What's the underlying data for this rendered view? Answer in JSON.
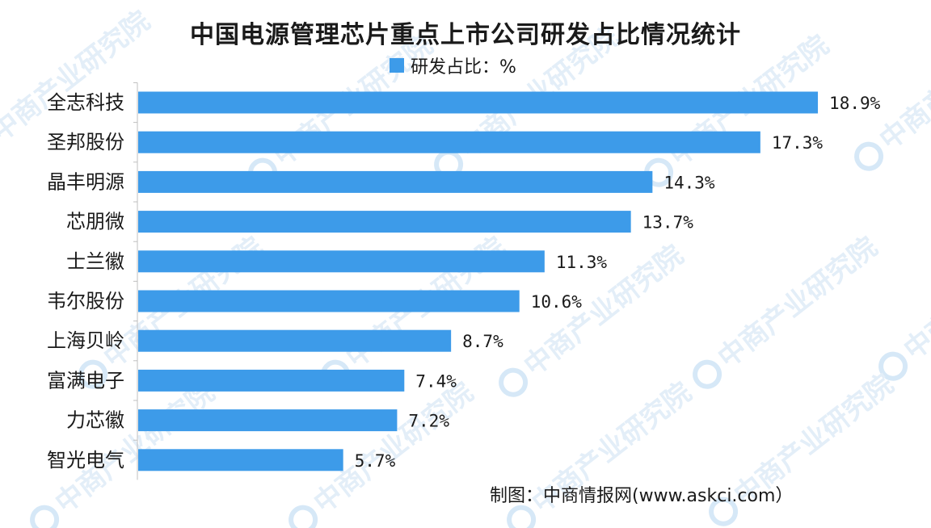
{
  "chart_data": {
    "type": "bar",
    "orientation": "horizontal",
    "title": "中国电源管理芯片重点上市公司研发占比情况统计",
    "legend": "研发占比：%",
    "categories": [
      "全志科技",
      "圣邦股份",
      "晶丰明源",
      "芯朋微",
      "士兰徽",
      "韦尔股份",
      "上海贝岭",
      "富满电子",
      "力芯徽",
      "智光电气"
    ],
    "values": [
      18.9,
      17.3,
      14.3,
      13.7,
      11.3,
      10.6,
      8.7,
      7.4,
      7.2,
      5.7
    ],
    "value_labels": [
      "18.9%",
      "17.3%",
      "14.3%",
      "13.7%",
      "11.3%",
      "10.6%",
      "8.7%",
      "7.4%",
      "7.2%",
      "5.7%"
    ],
    "xlim": [
      0,
      20
    ],
    "grid": false,
    "legend_position": "top-center",
    "bar_color": "#3d9be9"
  },
  "source_note": "制图：中商情报网(www.askci.com）",
  "watermark_text": "中商产业研究院"
}
